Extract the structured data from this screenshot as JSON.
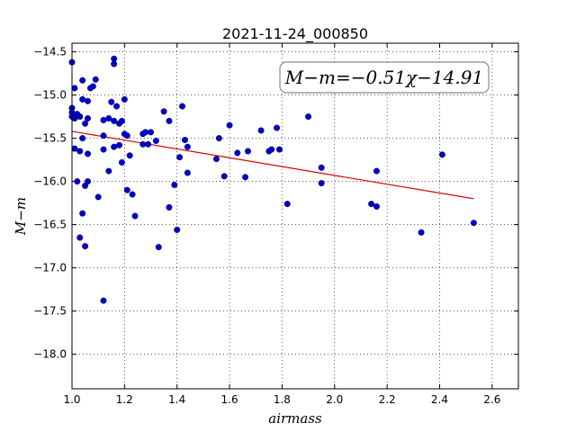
{
  "chart_data": {
    "type": "scatter",
    "title": "2021-11-24_000850",
    "xlabel": "airmass",
    "ylabel": "M−m",
    "xlim": [
      1.0,
      2.7
    ],
    "ylim": [
      -18.4,
      -14.4
    ],
    "y_inverted": true,
    "grid": true,
    "x_ticks": [
      1.0,
      1.2,
      1.4,
      1.6,
      1.8,
      2.0,
      2.2,
      2.4,
      2.6
    ],
    "x_tick_labels": [
      "1.0",
      "1.2",
      "1.4",
      "1.6",
      "1.8",
      "2.0",
      "2.2",
      "2.4",
      "2.6"
    ],
    "y_ticks": [
      -14.5,
      -15.0,
      -15.5,
      -16.0,
      -16.5,
      -17.0,
      -17.5,
      -18.0
    ],
    "y_tick_labels": [
      "−14.5",
      "−15.0",
      "−15.5",
      "−16.0",
      "−16.5",
      "−17.0",
      "−17.5",
      "−18.0"
    ],
    "annotation": "M−m=−0.51χ−14.91",
    "fit": {
      "slope": -0.51,
      "intercept": -14.91,
      "x_range": [
        1.0,
        2.53
      ],
      "color": "#d40000"
    },
    "marker_color": "#0000cc",
    "points": [
      [
        1.0,
        -14.62
      ],
      [
        1.0,
        -15.25
      ],
      [
        1.0,
        -15.15
      ],
      [
        1.0,
        -15.2
      ],
      [
        1.01,
        -15.27
      ],
      [
        1.01,
        -15.62
      ],
      [
        1.01,
        -14.92
      ],
      [
        1.02,
        -15.22
      ],
      [
        1.02,
        -16.0
      ],
      [
        1.03,
        -15.25
      ],
      [
        1.03,
        -15.65
      ],
      [
        1.04,
        -14.83
      ],
      [
        1.04,
        -15.05
      ],
      [
        1.04,
        -15.5
      ],
      [
        1.03,
        -16.65
      ],
      [
        1.04,
        -16.37
      ],
      [
        1.05,
        -16.05
      ],
      [
        1.05,
        -16.75
      ],
      [
        1.05,
        -15.33
      ],
      [
        1.06,
        -15.07
      ],
      [
        1.06,
        -15.27
      ],
      [
        1.06,
        -15.68
      ],
      [
        1.06,
        -16.0
      ],
      [
        1.07,
        -14.92
      ],
      [
        1.08,
        -14.9
      ],
      [
        1.09,
        -14.82
      ],
      [
        1.1,
        -16.18
      ],
      [
        1.12,
        -15.47
      ],
      [
        1.12,
        -15.29
      ],
      [
        1.12,
        -15.63
      ],
      [
        1.12,
        -17.38
      ],
      [
        1.14,
        -15.27
      ],
      [
        1.14,
        -15.88
      ],
      [
        1.15,
        -15.08
      ],
      [
        1.16,
        -14.58
      ],
      [
        1.16,
        -14.64
      ],
      [
        1.16,
        -15.6
      ],
      [
        1.16,
        -15.3
      ],
      [
        1.17,
        -15.13
      ],
      [
        1.18,
        -15.33
      ],
      [
        1.18,
        -15.58
      ],
      [
        1.19,
        -15.3
      ],
      [
        1.19,
        -15.78
      ],
      [
        1.2,
        -15.05
      ],
      [
        1.2,
        -15.45
      ],
      [
        1.21,
        -15.47
      ],
      [
        1.21,
        -16.1
      ],
      [
        1.22,
        -15.7
      ],
      [
        1.23,
        -16.15
      ],
      [
        1.24,
        -16.4
      ],
      [
        1.27,
        -15.45
      ],
      [
        1.27,
        -15.57
      ],
      [
        1.28,
        -15.43
      ],
      [
        1.29,
        -15.57
      ],
      [
        1.3,
        -15.43
      ],
      [
        1.32,
        -15.53
      ],
      [
        1.33,
        -16.76
      ],
      [
        1.35,
        -15.19
      ],
      [
        1.37,
        -15.3
      ],
      [
        1.37,
        -16.3
      ],
      [
        1.39,
        -16.04
      ],
      [
        1.4,
        -16.56
      ],
      [
        1.41,
        -15.72
      ],
      [
        1.42,
        -15.13
      ],
      [
        1.43,
        -15.52
      ],
      [
        1.44,
        -15.6
      ],
      [
        1.44,
        -15.9
      ],
      [
        1.55,
        -15.74
      ],
      [
        1.56,
        -15.5
      ],
      [
        1.58,
        -15.94
      ],
      [
        1.6,
        -15.35
      ],
      [
        1.63,
        -15.67
      ],
      [
        1.66,
        -15.95
      ],
      [
        1.67,
        -15.65
      ],
      [
        1.72,
        -15.41
      ],
      [
        1.75,
        -15.65
      ],
      [
        1.76,
        -15.63
      ],
      [
        1.78,
        -15.38
      ],
      [
        1.79,
        -15.63
      ],
      [
        1.82,
        -16.26
      ],
      [
        1.9,
        -15.25
      ],
      [
        1.95,
        -15.84
      ],
      [
        1.95,
        -16.02
      ],
      [
        2.14,
        -16.26
      ],
      [
        2.16,
        -15.88
      ],
      [
        2.16,
        -16.29
      ],
      [
        2.33,
        -16.59
      ],
      [
        2.41,
        -15.69
      ],
      [
        2.53,
        -16.48
      ]
    ]
  }
}
